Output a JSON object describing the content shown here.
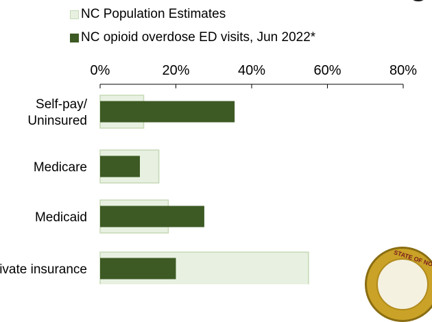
{
  "title_fragment": "g",
  "legend": [
    {
      "label": "NC Population Estimates",
      "color": "#e8f1e1"
    },
    {
      "label": "NC opioid overdose ED visits, Jun 2022*",
      "color": "#3d5a24"
    }
  ],
  "chart_data": {
    "type": "bar",
    "orientation": "horizontal",
    "categories": [
      "Self-pay/ Uninsured",
      "Medicare",
      "Medicaid",
      "Private insurance"
    ],
    "category_lines": [
      [
        "Self-pay/",
        "Uninsured"
      ],
      [
        "Medicare"
      ],
      [
        "Medicaid"
      ],
      [
        "Private insurance"
      ]
    ],
    "series": [
      {
        "name": "NC Population Estimates",
        "values": [
          11.5,
          15.5,
          18,
          55
        ],
        "color": "#e8f1e1",
        "stroke": "#c5d9b5"
      },
      {
        "name": "NC opioid overdose ED visits, Jun 2022*",
        "values": [
          35.5,
          10.5,
          27.5,
          20
        ],
        "color": "#3d5a24"
      }
    ],
    "xlim": [
      0,
      80
    ],
    "ticks": [
      "0%",
      "20%",
      "40%",
      "60%",
      "80%"
    ],
    "tick_values": [
      0,
      20,
      40,
      60,
      80
    ],
    "axis_position": "top",
    "grid": false
  },
  "seal_text": "STATE OF NOR"
}
